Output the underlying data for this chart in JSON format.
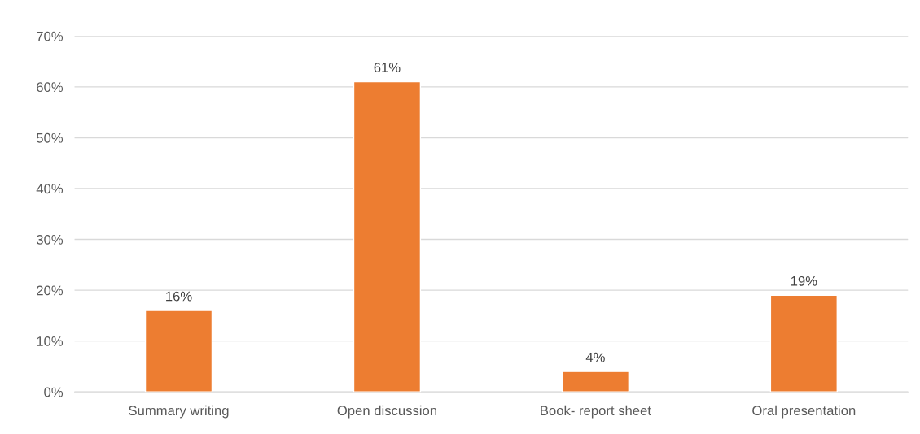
{
  "chart_data": {
    "type": "bar",
    "categories": [
      "Summary writing",
      "Open discussion",
      "Book- report sheet",
      "Oral presentation"
    ],
    "values": [
      16,
      61,
      4,
      19
    ],
    "value_labels": [
      "16%",
      "61%",
      "4%",
      "19%"
    ],
    "color": "#ed7d31",
    "ylim": [
      0,
      70
    ],
    "yticks": [
      {
        "value": 0,
        "label": "0%"
      },
      {
        "value": 10,
        "label": "10%"
      },
      {
        "value": 20,
        "label": "20%"
      },
      {
        "value": 30,
        "label": "30%"
      },
      {
        "value": 40,
        "label": "40%"
      },
      {
        "value": 50,
        "label": "50%"
      },
      {
        "value": 60,
        "label": "60%"
      },
      {
        "value": 70,
        "label": "70%"
      }
    ],
    "grid": "y",
    "legend": false
  }
}
